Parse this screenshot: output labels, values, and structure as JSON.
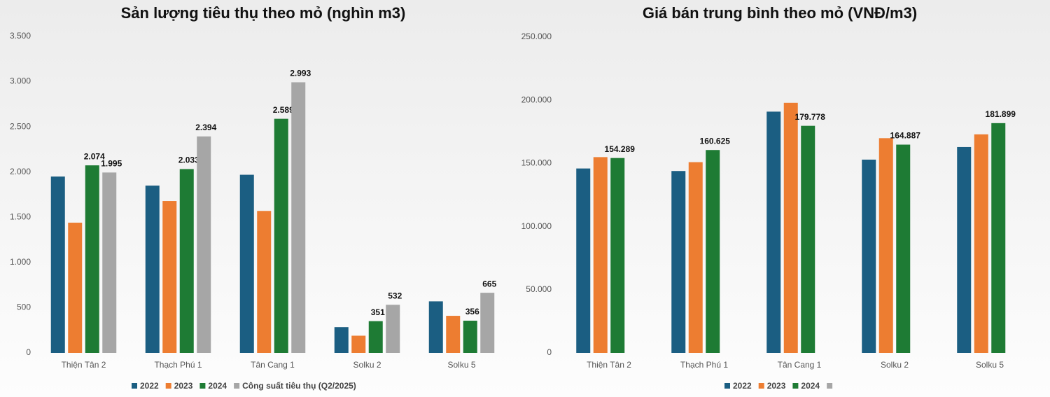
{
  "chart_data": [
    {
      "type": "bar",
      "title": "Sản lượng tiêu thụ theo mỏ (nghìn m3)",
      "categories": [
        "Thiện Tân 2",
        "Thạch Phú 1",
        "Tân Cang 1",
        "Solku 2",
        "Solku 5"
      ],
      "series": [
        {
          "name": "2022",
          "color": "#1b5e82",
          "values": [
            1950,
            1850,
            1970,
            285,
            570
          ]
        },
        {
          "name": "2023",
          "color": "#ed7d31",
          "values": [
            1440,
            1680,
            1570,
            190,
            410
          ]
        },
        {
          "name": "2024",
          "color": "#1e7b34",
          "values": [
            2074,
            2033,
            2589,
            351,
            356
          ],
          "value_labels": [
            "2.074",
            "2.033",
            "2.589",
            "351",
            "356"
          ]
        },
        {
          "name": "Công suất tiêu thụ (Q2/2025)",
          "color": "#a6a6a6",
          "values": [
            1995,
            2394,
            2993,
            532,
            665
          ],
          "value_labels": [
            "1.995",
            "2.394",
            "2.993",
            "532",
            "665"
          ]
        }
      ],
      "ylim": [
        0,
        3500
      ],
      "yticks": [
        0,
        500,
        {
          "value": 1000,
          "label": "1.000"
        },
        {
          "value": 1500,
          "label": "1.500"
        },
        {
          "value": 2000,
          "label": "2.000"
        },
        {
          "value": 2500,
          "label": "2.500"
        },
        {
          "value": 3000,
          "label": "3.000"
        },
        {
          "value": 3500,
          "label": "3.500"
        }
      ],
      "grid": false
    },
    {
      "type": "bar",
      "title": "Giá bán trung bình theo mỏ (VNĐ/m3)",
      "categories": [
        "Thiện Tân 2",
        "Thạch Phú 1",
        "Tân Cang 1",
        "Solku 2",
        "Solku 5"
      ],
      "series": [
        {
          "name": "2022",
          "color": "#1b5e82",
          "values": [
            146000,
            144000,
            191000,
            153000,
            163000
          ]
        },
        {
          "name": "2023",
          "color": "#ed7d31",
          "values": [
            155000,
            151000,
            198000,
            170000,
            173000
          ]
        },
        {
          "name": "2024",
          "color": "#1e7b34",
          "values": [
            154289,
            160625,
            179778,
            164887,
            181899
          ],
          "value_labels": [
            "154.289",
            "160.625",
            "179.778",
            "164.887",
            "181.899"
          ]
        },
        {
          "name": null,
          "color": "#a6a6a6",
          "values": [
            null,
            null,
            null,
            null,
            null
          ]
        }
      ],
      "ylim": [
        0,
        250000
      ],
      "yticks": [
        0,
        {
          "value": 50000,
          "label": "50.000"
        },
        {
          "value": 100000,
          "label": "100.000"
        },
        {
          "value": 150000,
          "label": "150.000"
        },
        {
          "value": 200000,
          "label": "200.000"
        },
        {
          "value": 250000,
          "label": "250.000"
        }
      ],
      "grid": false
    }
  ]
}
